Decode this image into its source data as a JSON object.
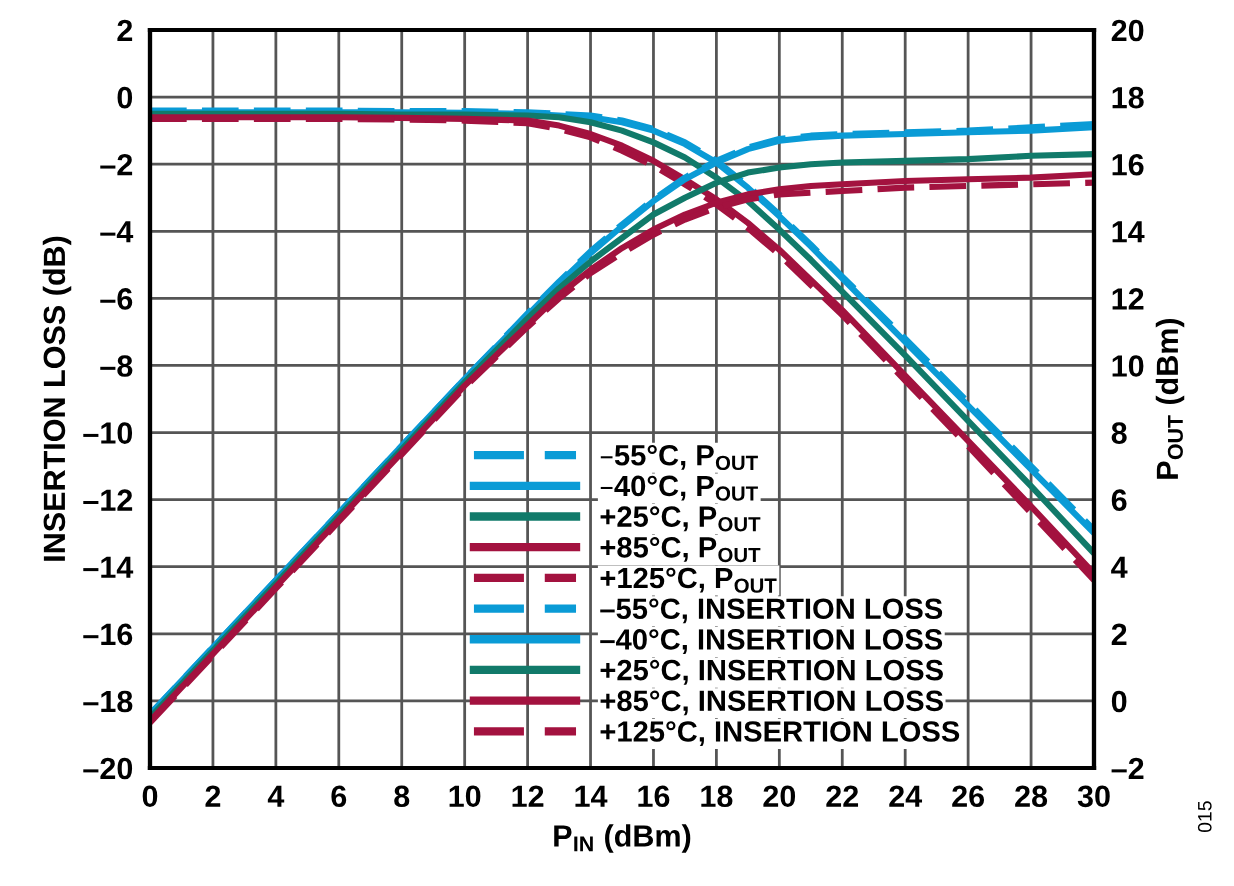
{
  "chart_data": {
    "type": "line",
    "xlabel": "P$_{IN}$ (dBm)",
    "ylabel": "INSERTION LOSS (dB)",
    "y2label": "P$_{OUT}$ (dBm)",
    "x": [
      0,
      2,
      4,
      6,
      8,
      10,
      12,
      13,
      14,
      15,
      16,
      17,
      18,
      19,
      20,
      21,
      22,
      24,
      26,
      28,
      30
    ],
    "xlim": [
      0,
      30
    ],
    "xticks": [
      0,
      2,
      4,
      6,
      8,
      10,
      12,
      14,
      16,
      18,
      20,
      22,
      24,
      26,
      28,
      30
    ],
    "ylim": [
      -20,
      2
    ],
    "yticks": [
      {
        "value": -20,
        "label": "–20"
      },
      {
        "value": -18,
        "label": "–18"
      },
      {
        "value": -16,
        "label": "–16"
      },
      {
        "value": -14,
        "label": "–14"
      },
      {
        "value": -12,
        "label": "–12"
      },
      {
        "value": -10,
        "label": "–10"
      },
      {
        "value": -8,
        "label": "–8"
      },
      {
        "value": -6,
        "label": "–6"
      },
      {
        "value": -4,
        "label": "–4"
      },
      {
        "value": -2,
        "label": "–2"
      },
      0,
      2
    ],
    "y2lim": [
      -2,
      20
    ],
    "y2ticks": [
      {
        "value": -2,
        "label": "–2"
      },
      0,
      2,
      4,
      6,
      8,
      10,
      12,
      14,
      16,
      18,
      20
    ],
    "grid": true,
    "legend": "bottom right",
    "marker": "none",
    "series": [
      {
        "name": "–55°C, P$_{OUT}$",
        "color": "#0a9bd6",
        "axis": "y2",
        "line_style": "dashed",
        "values": [
          -0.4,
          1.6,
          3.6,
          5.6,
          7.6,
          9.6,
          11.55,
          12.5,
          13.4,
          14.2,
          14.95,
          15.6,
          16.1,
          16.5,
          16.75,
          16.85,
          16.9,
          16.95,
          17.0,
          17.1,
          17.2
        ]
      },
      {
        "name": "–40°C, P$_{OUT}$",
        "color": "#0a9bd6",
        "axis": "y2",
        "line_style": "solid",
        "values": [
          -0.4,
          1.6,
          3.6,
          5.6,
          7.6,
          9.6,
          11.5,
          12.45,
          13.35,
          14.15,
          14.9,
          15.55,
          16.05,
          16.45,
          16.7,
          16.8,
          16.85,
          16.9,
          16.95,
          17.0,
          17.1
        ]
      },
      {
        "name": "+25°C, P$_{OUT}$",
        "color": "#117a6a",
        "axis": "y2",
        "line_style": "solid",
        "values": [
          -0.5,
          1.5,
          3.5,
          5.5,
          7.5,
          9.5,
          11.4,
          12.3,
          13.1,
          13.8,
          14.5,
          15.0,
          15.45,
          15.75,
          15.9,
          16.0,
          16.05,
          16.1,
          16.15,
          16.25,
          16.3
        ]
      },
      {
        "name": "+85°C, P$_{OUT}$",
        "color": "#a3123f",
        "axis": "y2",
        "line_style": "solid",
        "values": [
          -0.6,
          1.4,
          3.4,
          5.4,
          7.4,
          9.4,
          11.2,
          12.1,
          12.85,
          13.5,
          14.05,
          14.5,
          14.85,
          15.1,
          15.25,
          15.35,
          15.4,
          15.5,
          15.55,
          15.6,
          15.7
        ]
      },
      {
        "name": "+125°C, P$_{OUT}$",
        "color": "#a3123f",
        "axis": "y2",
        "line_style": "dashed",
        "values": [
          -0.65,
          1.35,
          3.35,
          5.35,
          7.35,
          9.35,
          11.15,
          12.0,
          12.75,
          13.35,
          13.9,
          14.35,
          14.7,
          14.95,
          15.1,
          15.15,
          15.2,
          15.3,
          15.35,
          15.4,
          15.45
        ]
      },
      {
        "name": "–55°C, INSERTION LOSS",
        "color": "#0a9bd6",
        "line_style": "dashed",
        "values": [
          -0.4,
          -0.4,
          -0.4,
          -0.4,
          -0.42,
          -0.42,
          -0.45,
          -0.5,
          -0.55,
          -0.7,
          -0.95,
          -1.35,
          -1.9,
          -2.65,
          -3.5,
          -4.4,
          -5.35,
          -7.2,
          -9.1,
          -11.0,
          -12.9
        ]
      },
      {
        "name": "–40°C, INSERTION LOSS",
        "color": "#0a9bd6",
        "line_style": "solid",
        "values": [
          -0.45,
          -0.45,
          -0.45,
          -0.45,
          -0.45,
          -0.47,
          -0.5,
          -0.55,
          -0.6,
          -0.75,
          -1.0,
          -1.4,
          -1.95,
          -2.7,
          -3.55,
          -4.45,
          -5.4,
          -7.3,
          -9.2,
          -11.1,
          -13.0
        ]
      },
      {
        "name": "+25°C, INSERTION LOSS",
        "color": "#117a6a",
        "line_style": "solid",
        "values": [
          -0.5,
          -0.5,
          -0.5,
          -0.5,
          -0.52,
          -0.52,
          -0.55,
          -0.6,
          -0.75,
          -1.0,
          -1.35,
          -1.8,
          -2.4,
          -3.1,
          -3.95,
          -4.85,
          -5.8,
          -7.7,
          -9.65,
          -11.6,
          -13.6
        ]
      },
      {
        "name": "+85°C, INSERTION LOSS",
        "color": "#a3123f",
        "line_style": "solid",
        "values": [
          -0.6,
          -0.6,
          -0.6,
          -0.6,
          -0.62,
          -0.65,
          -0.7,
          -0.85,
          -1.1,
          -1.45,
          -1.9,
          -2.45,
          -3.05,
          -3.75,
          -4.55,
          -5.45,
          -6.35,
          -8.3,
          -10.25,
          -12.2,
          -14.2
        ]
      },
      {
        "name": "+125°C, INSERTION LOSS",
        "color": "#a3123f",
        "line_style": "dashed",
        "values": [
          -0.65,
          -0.65,
          -0.65,
          -0.65,
          -0.67,
          -0.7,
          -0.78,
          -0.95,
          -1.2,
          -1.6,
          -2.05,
          -2.6,
          -3.2,
          -3.9,
          -4.7,
          -5.6,
          -6.5,
          -8.45,
          -10.4,
          -12.4,
          -14.4
        ]
      }
    ],
    "annotations": [
      "015"
    ]
  }
}
